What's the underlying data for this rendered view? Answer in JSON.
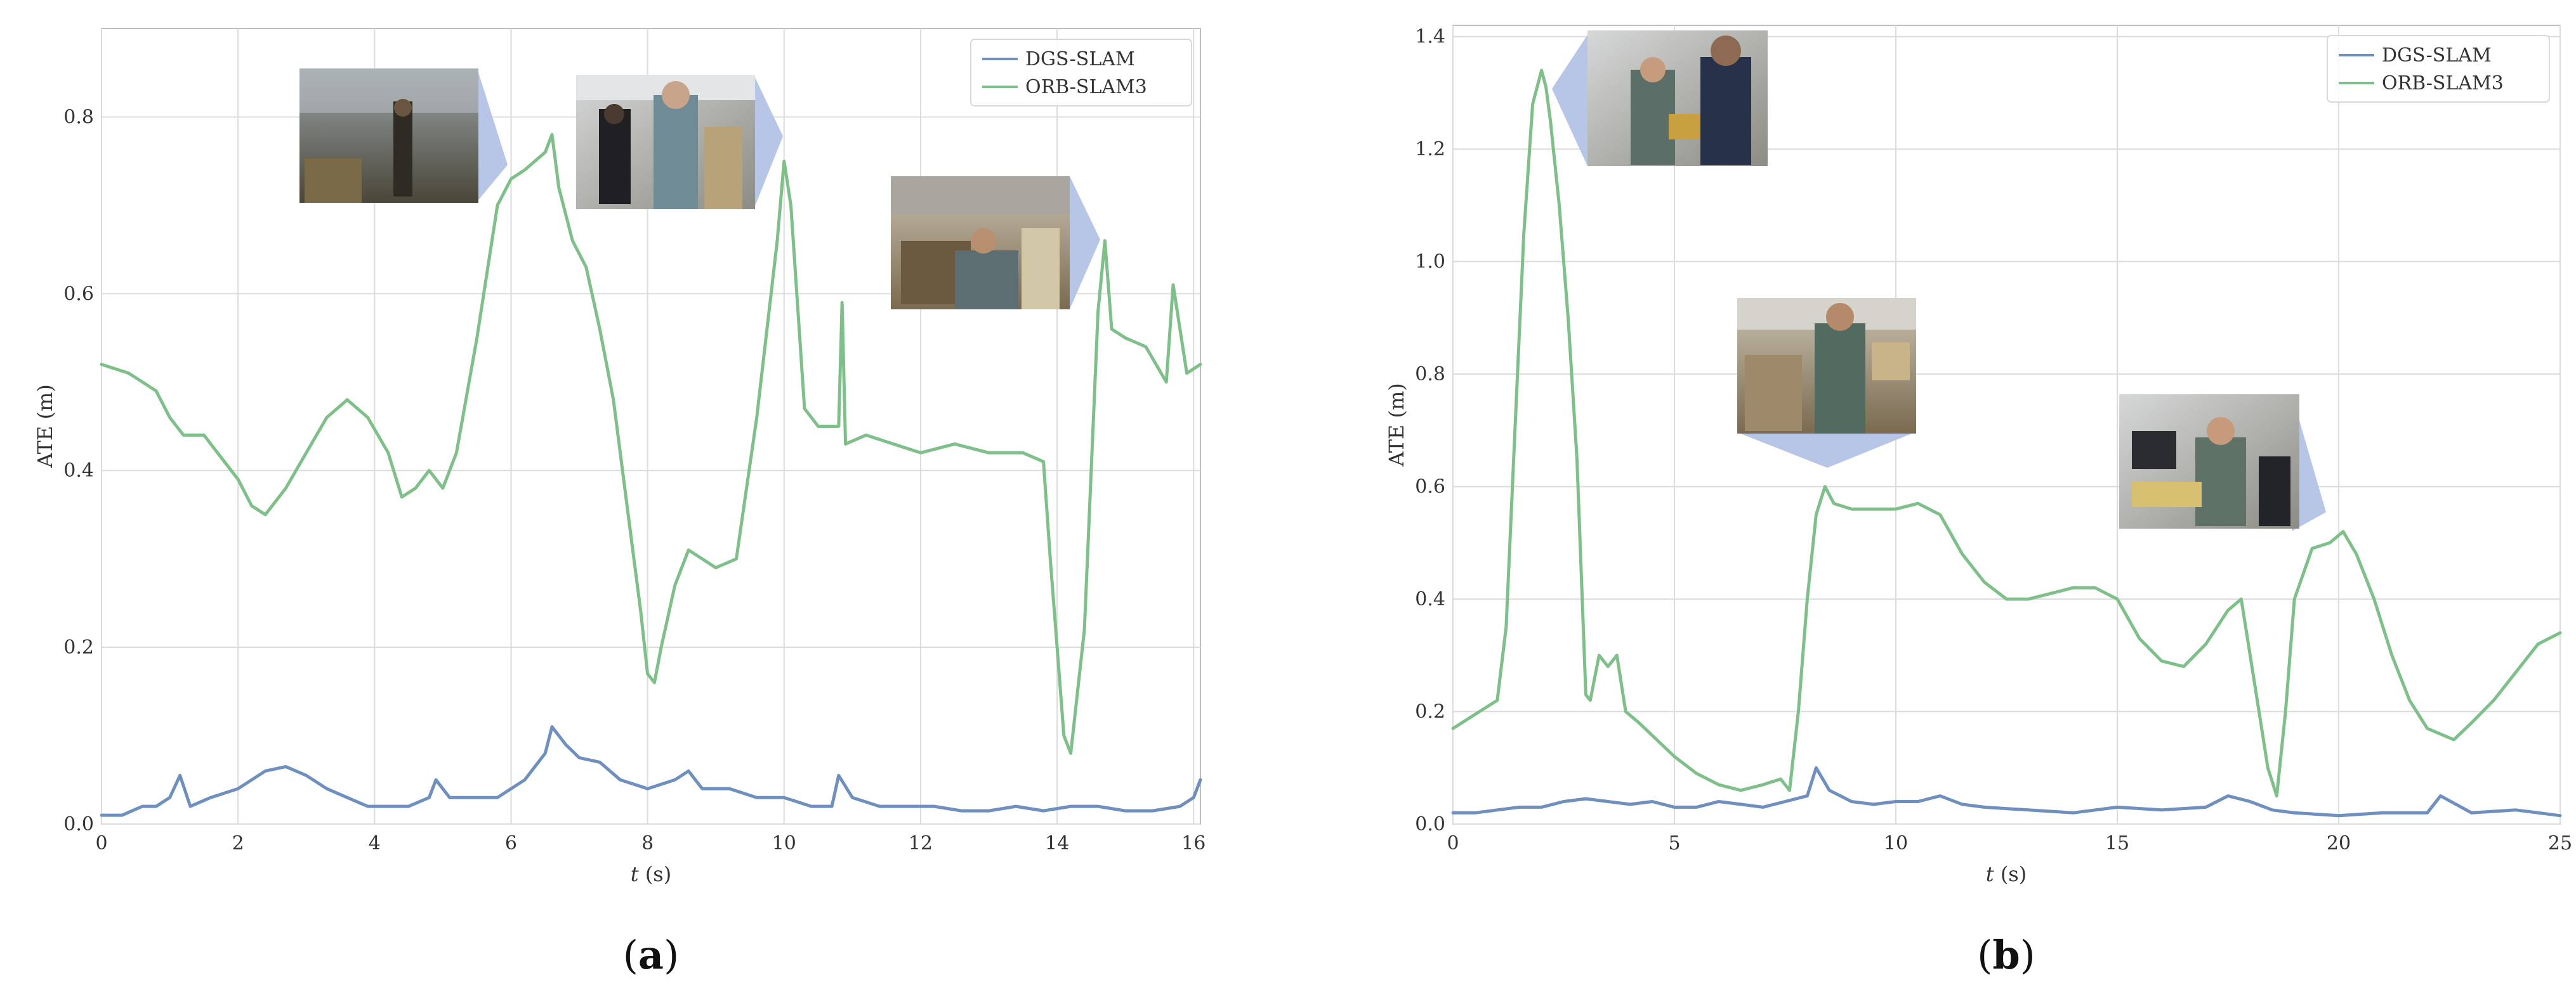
{
  "colors": {
    "dgs_slam": "#6f8fbf",
    "orb_slam3": "#7fbf8a",
    "grid": "#dcdcdc",
    "axis": "#bbbbbb",
    "callout": "#b7c6e6"
  },
  "panels": {
    "a": {
      "label": "(a)",
      "label_prefix": "(",
      "label_letter": "a",
      "label_suffix": ")"
    },
    "b": {
      "label": "(b)",
      "label_prefix": "(",
      "label_letter": "b",
      "label_suffix": ")"
    }
  },
  "chart_data": [
    {
      "type": "line",
      "panel": "a",
      "xlabel_italic": "t",
      "xlabel_unit": "(s)",
      "ylabel": "ATE (m)",
      "xlim": [
        0,
        16.1
      ],
      "ylim": [
        0,
        0.9
      ],
      "xticks": [
        "0",
        "2",
        "4",
        "6",
        "8",
        "10",
        "12",
        "14",
        "16"
      ],
      "yticks": [
        "0.0",
        "0.2",
        "0.4",
        "0.6",
        "0.8"
      ],
      "grid": true,
      "legend": "top-right",
      "series": [
        {
          "name": "DGS-SLAM",
          "x": [
            0,
            0.3,
            0.6,
            0.8,
            1.0,
            1.15,
            1.3,
            1.6,
            2.0,
            2.4,
            2.7,
            3.0,
            3.3,
            3.6,
            3.9,
            4.2,
            4.5,
            4.8,
            4.9,
            5.1,
            5.4,
            5.8,
            6.2,
            6.5,
            6.6,
            6.8,
            7.0,
            7.3,
            7.6,
            8.0,
            8.4,
            8.6,
            8.8,
            9.2,
            9.6,
            10.0,
            10.4,
            10.7,
            10.8,
            11.0,
            11.4,
            11.8,
            12.2,
            12.6,
            13.0,
            13.4,
            13.8,
            14.2,
            14.6,
            15.0,
            15.4,
            15.8,
            16.0,
            16.1
          ],
          "y": [
            0.01,
            0.01,
            0.02,
            0.02,
            0.03,
            0.055,
            0.02,
            0.03,
            0.04,
            0.06,
            0.065,
            0.055,
            0.04,
            0.03,
            0.02,
            0.02,
            0.02,
            0.03,
            0.05,
            0.03,
            0.03,
            0.03,
            0.05,
            0.08,
            0.11,
            0.09,
            0.075,
            0.07,
            0.05,
            0.04,
            0.05,
            0.06,
            0.04,
            0.04,
            0.03,
            0.03,
            0.02,
            0.02,
            0.055,
            0.03,
            0.02,
            0.02,
            0.02,
            0.015,
            0.015,
            0.02,
            0.015,
            0.02,
            0.02,
            0.015,
            0.015,
            0.02,
            0.03,
            0.05
          ]
        },
        {
          "name": "ORB-SLAM3",
          "x": [
            0,
            0.4,
            0.8,
            1.0,
            1.2,
            1.5,
            1.8,
            2.0,
            2.2,
            2.4,
            2.7,
            3.0,
            3.3,
            3.6,
            3.9,
            4.2,
            4.4,
            4.6,
            4.8,
            5.0,
            5.2,
            5.5,
            5.8,
            6.0,
            6.2,
            6.5,
            6.6,
            6.7,
            6.9,
            7.1,
            7.3,
            7.5,
            7.7,
            7.9,
            8.0,
            8.1,
            8.2,
            8.4,
            8.6,
            9.0,
            9.3,
            9.6,
            9.9,
            10.0,
            10.1,
            10.3,
            10.5,
            10.8,
            10.85,
            10.9,
            11.2,
            11.6,
            12.0,
            12.5,
            13.0,
            13.5,
            13.8,
            13.9,
            14.0,
            14.1,
            14.2,
            14.4,
            14.6,
            14.7,
            14.8,
            15.0,
            15.3,
            15.6,
            15.7,
            15.9,
            16.1
          ],
          "y": [
            0.52,
            0.51,
            0.49,
            0.46,
            0.44,
            0.44,
            0.41,
            0.39,
            0.36,
            0.35,
            0.38,
            0.42,
            0.46,
            0.48,
            0.46,
            0.42,
            0.37,
            0.38,
            0.4,
            0.38,
            0.42,
            0.55,
            0.7,
            0.73,
            0.74,
            0.76,
            0.78,
            0.72,
            0.66,
            0.63,
            0.56,
            0.48,
            0.36,
            0.24,
            0.17,
            0.16,
            0.2,
            0.27,
            0.31,
            0.29,
            0.3,
            0.46,
            0.66,
            0.75,
            0.7,
            0.47,
            0.45,
            0.45,
            0.59,
            0.43,
            0.44,
            0.43,
            0.42,
            0.43,
            0.42,
            0.42,
            0.41,
            0.3,
            0.2,
            0.1,
            0.08,
            0.22,
            0.58,
            0.66,
            0.56,
            0.55,
            0.54,
            0.5,
            0.61,
            0.51,
            0.52
          ]
        }
      ]
    },
    {
      "type": "line",
      "panel": "b",
      "xlabel_italic": "t",
      "xlabel_unit": "(s)",
      "ylabel": "ATE (m)",
      "xlim": [
        0,
        25
      ],
      "ylim": [
        0,
        1.42
      ],
      "xticks": [
        "0",
        "5",
        "10",
        "15",
        "20",
        "25"
      ],
      "yticks": [
        "0.0",
        "0.2",
        "0.4",
        "0.6",
        "0.8",
        "1.0",
        "1.2",
        "1.4"
      ],
      "grid": true,
      "legend": "top-right",
      "series": [
        {
          "name": "DGS-SLAM",
          "x": [
            0,
            0.5,
            1.0,
            1.5,
            2.0,
            2.5,
            3.0,
            3.5,
            4.0,
            4.5,
            5.0,
            5.5,
            6.0,
            6.5,
            7.0,
            7.5,
            8.0,
            8.2,
            8.5,
            9.0,
            9.5,
            10.0,
            10.5,
            11.0,
            11.5,
            12.0,
            13.0,
            14.0,
            15.0,
            16.0,
            17.0,
            17.5,
            18.0,
            18.5,
            19.0,
            20.0,
            21.0,
            22.0,
            22.3,
            23.0,
            24.0,
            25.0
          ],
          "y": [
            0.02,
            0.02,
            0.025,
            0.03,
            0.03,
            0.04,
            0.045,
            0.04,
            0.035,
            0.04,
            0.03,
            0.03,
            0.04,
            0.035,
            0.03,
            0.04,
            0.05,
            0.1,
            0.06,
            0.04,
            0.035,
            0.04,
            0.04,
            0.05,
            0.035,
            0.03,
            0.025,
            0.02,
            0.03,
            0.025,
            0.03,
            0.05,
            0.04,
            0.025,
            0.02,
            0.015,
            0.02,
            0.02,
            0.05,
            0.02,
            0.025,
            0.015
          ]
        },
        {
          "name": "ORB-SLAM3",
          "x": [
            0,
            0.4,
            0.8,
            1.0,
            1.2,
            1.4,
            1.6,
            1.8,
            2.0,
            2.1,
            2.2,
            2.4,
            2.6,
            2.8,
            3.0,
            3.1,
            3.3,
            3.5,
            3.7,
            3.9,
            4.2,
            4.6,
            5.0,
            5.5,
            6.0,
            6.5,
            7.0,
            7.4,
            7.6,
            7.8,
            8.0,
            8.2,
            8.4,
            8.6,
            9.0,
            9.5,
            10.0,
            10.5,
            11.0,
            11.5,
            12.0,
            12.5,
            13.0,
            13.5,
            14.0,
            14.5,
            15.0,
            15.5,
            16.0,
            16.5,
            17.0,
            17.5,
            17.8,
            18.0,
            18.2,
            18.4,
            18.6,
            18.8,
            19.0,
            19.4,
            19.8,
            20.1,
            20.4,
            20.8,
            21.2,
            21.6,
            22.0,
            22.6,
            23.0,
            23.5,
            24.0,
            24.5,
            25.0
          ],
          "y": [
            0.17,
            0.19,
            0.21,
            0.22,
            0.35,
            0.7,
            1.05,
            1.28,
            1.34,
            1.31,
            1.25,
            1.1,
            0.9,
            0.65,
            0.23,
            0.22,
            0.3,
            0.28,
            0.3,
            0.2,
            0.18,
            0.15,
            0.12,
            0.09,
            0.07,
            0.06,
            0.07,
            0.08,
            0.06,
            0.2,
            0.4,
            0.55,
            0.6,
            0.57,
            0.56,
            0.56,
            0.56,
            0.57,
            0.55,
            0.48,
            0.43,
            0.4,
            0.4,
            0.41,
            0.42,
            0.42,
            0.4,
            0.33,
            0.29,
            0.28,
            0.32,
            0.38,
            0.4,
            0.3,
            0.2,
            0.1,
            0.05,
            0.2,
            0.4,
            0.49,
            0.5,
            0.52,
            0.48,
            0.4,
            0.3,
            0.22,
            0.17,
            0.15,
            0.18,
            0.22,
            0.27,
            0.32,
            0.34
          ]
        }
      ]
    }
  ]
}
